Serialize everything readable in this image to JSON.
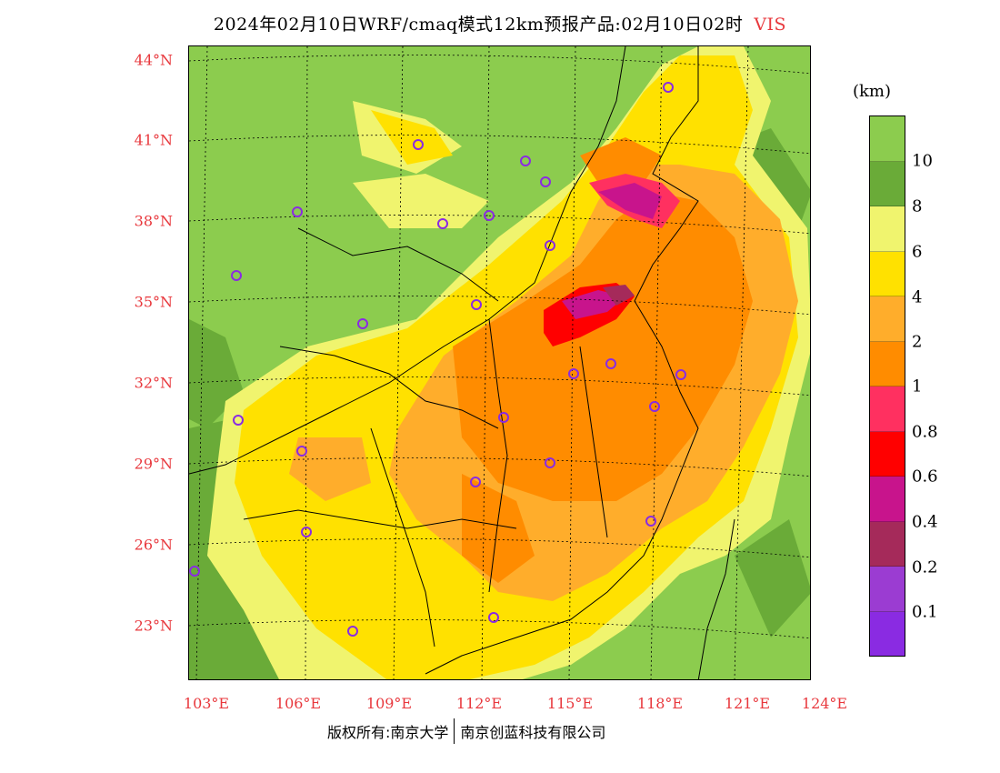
{
  "header": {
    "title": "2024年02月10日WRF/cmaq模式12km预报产品:02月10日02时",
    "variable": "VIS",
    "variable_color": "#e8383d"
  },
  "axes": {
    "lat_labels": [
      "44°N",
      "41°N",
      "38°N",
      "35°N",
      "32°N",
      "29°N",
      "26°N",
      "23°N"
    ],
    "lon_labels": [
      "103°E",
      "106°E",
      "109°E",
      "112°E",
      "115°E",
      "118°E",
      "121°E",
      "124°E"
    ],
    "label_color": "#e8383d"
  },
  "legend": {
    "unit": "(km)",
    "ticks": [
      "10",
      "8",
      "6",
      "4",
      "2",
      "1",
      "0.8",
      "0.6",
      "0.4",
      "0.2",
      "0.1"
    ],
    "colors": [
      "#8ccc4e",
      "#6aab38",
      "#f0f46e",
      "#ffe100",
      "#ffad2b",
      "#ff8c00",
      "#ff3060",
      "#ff0000",
      "#c8148c",
      "#a52a5a",
      "#9b3cd2",
      "#8a2be2"
    ]
  },
  "map": {
    "ocean_color": "#8ccc4e",
    "cities_color": "#8a2be2",
    "city_count": 25
  },
  "footer": {
    "copyright": "版权所有:南京大学",
    "company": "南京创蓝科技有限公司"
  }
}
